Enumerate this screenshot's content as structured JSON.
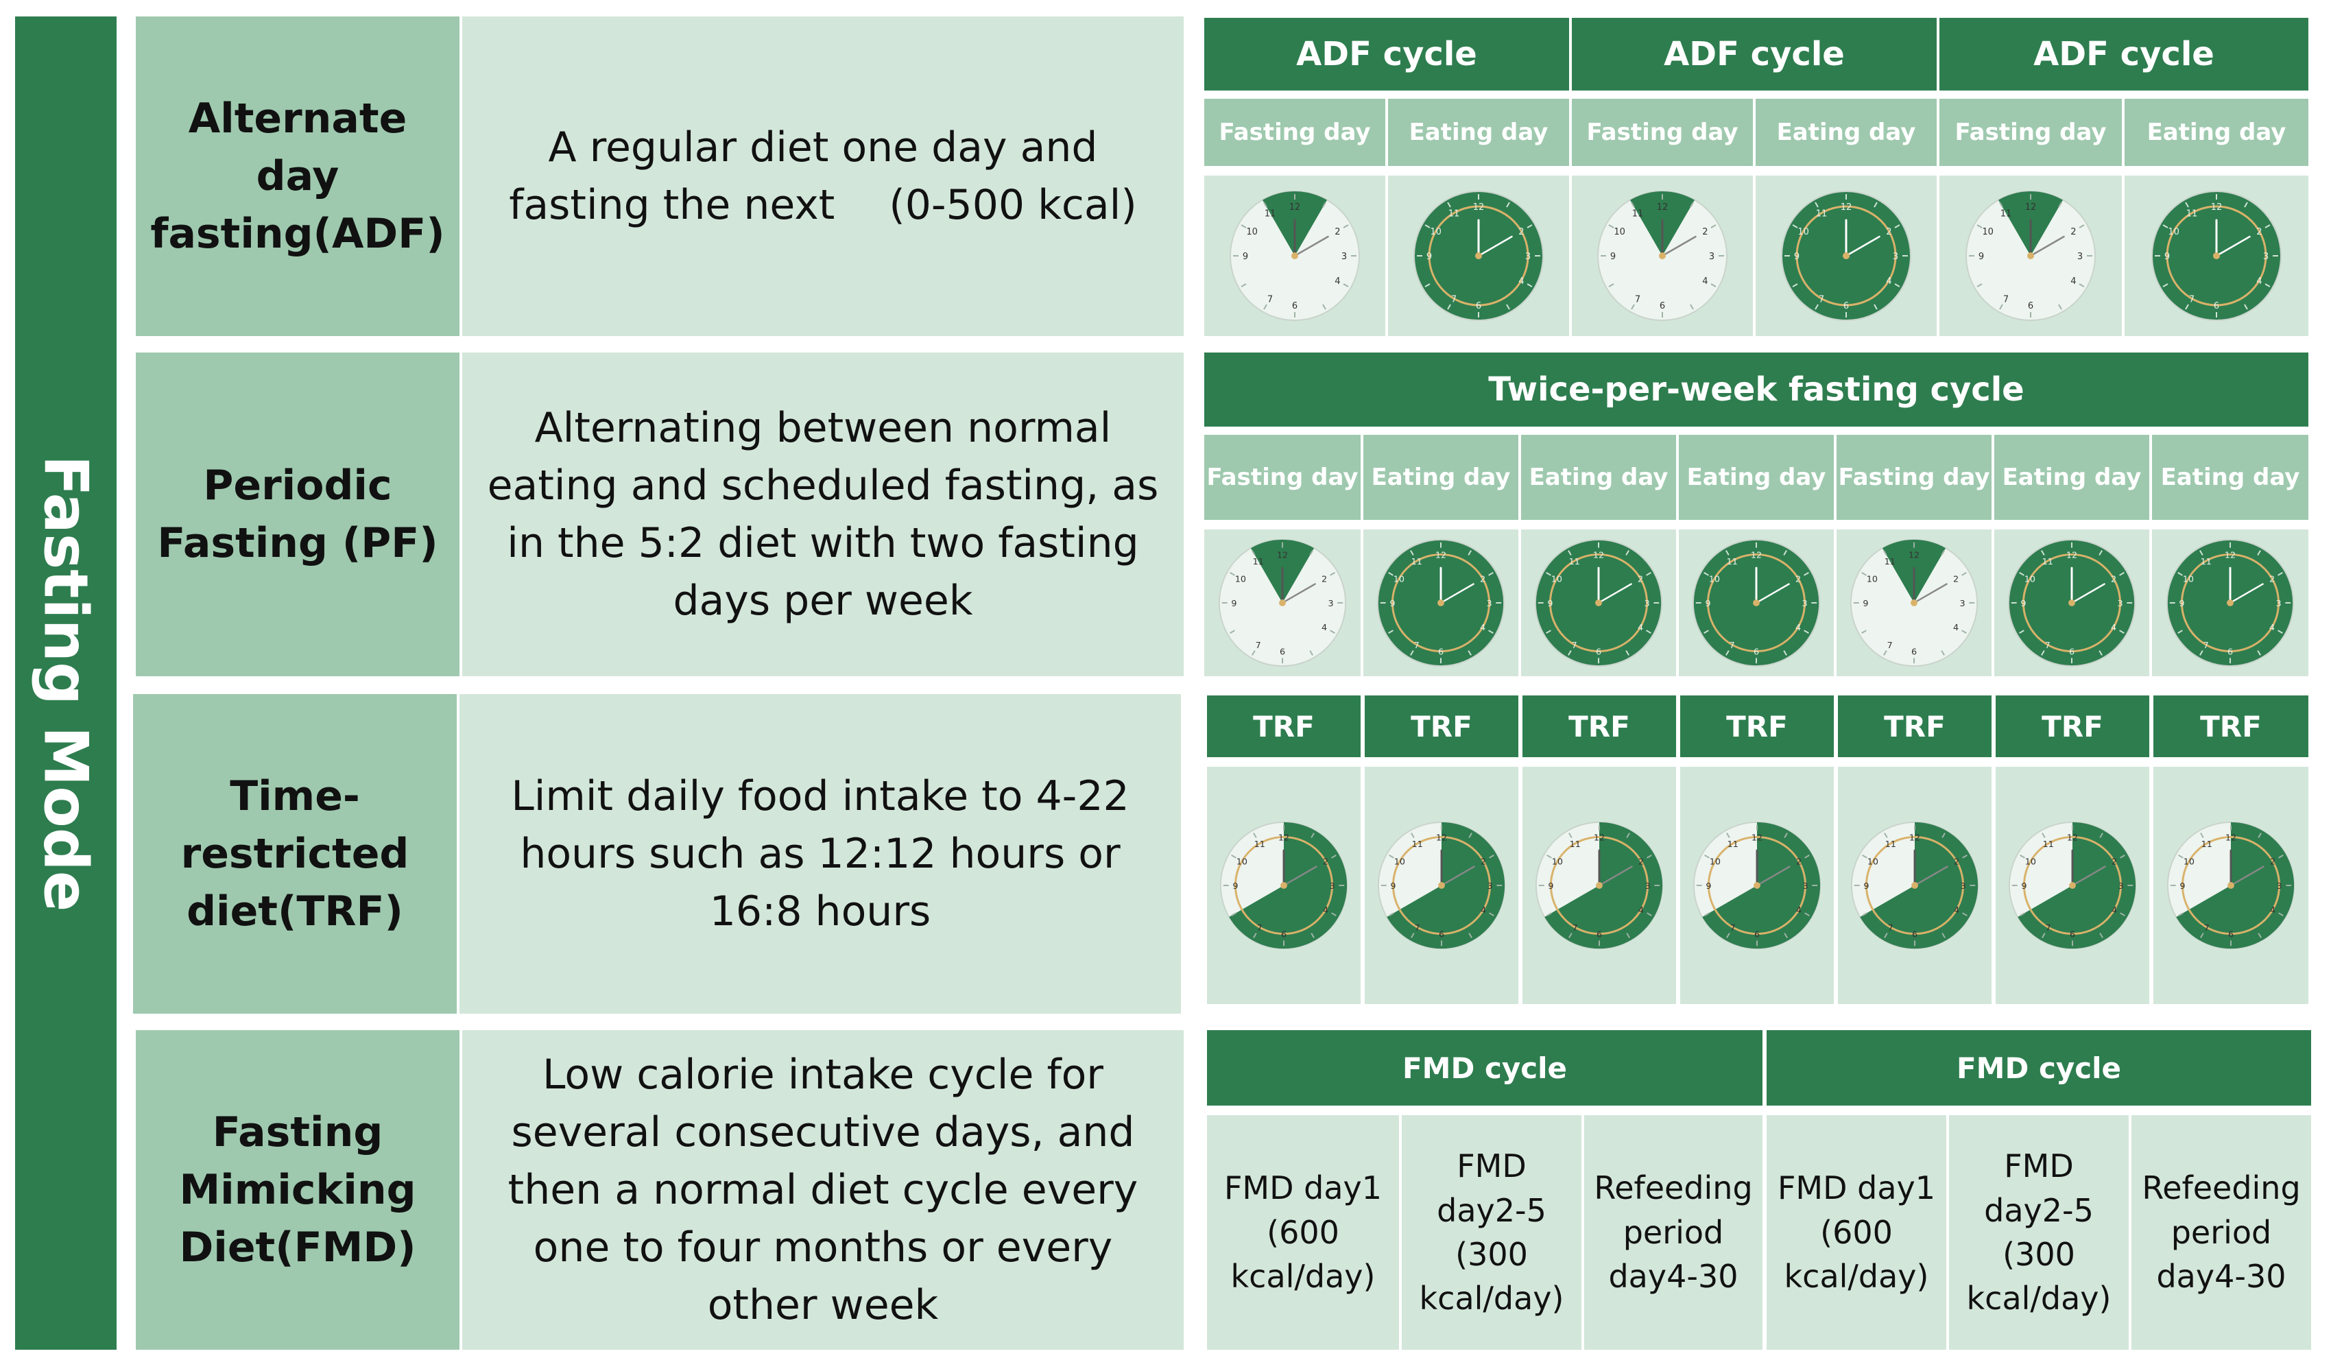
{
  "side_label": "Fasting Mode",
  "modes": [
    {
      "name": "Alternate day fasting(ADF)",
      "description": "A regular diet one day and fasting the next  (0-500 kcal)"
    },
    {
      "name": "Periodic Fasting (PF)",
      "description": "Alternating between normal eating and scheduled fasting, as in the 5:2 diet with two fasting days per week"
    },
    {
      "name": "Time-restricted diet(TRF)",
      "description": "Limit daily food intake to 4-22 hours such as 12:12 hours or 16:8 hours"
    },
    {
      "name": "Fasting Mimicking Diet(FMD)",
      "description": "Low calorie intake cycle for several consecutive days, and then a normal diet cycle every one to four months or every other week"
    }
  ],
  "adf": {
    "cycles": [
      "ADF cycle",
      "ADF cycle",
      "ADF cycle"
    ],
    "days": [
      "Fasting day",
      "Eating day",
      "Fasting day",
      "Eating day",
      "Fasting day",
      "Eating day"
    ]
  },
  "pf": {
    "header": "Twice-per-week fasting cycle",
    "days": [
      "Fasting day",
      "Eating day",
      "Eating day",
      "Eating day",
      "Fasting day",
      "Eating day",
      "Eating day"
    ]
  },
  "trf": {
    "headers": [
      "TRF",
      "TRF",
      "TRF",
      "TRF",
      "TRF",
      "TRF",
      "TRF"
    ]
  },
  "fmd": {
    "cycles": [
      "FMD cycle",
      "FMD cycle"
    ],
    "cells": [
      "FMD day1 (600 kcal/day)",
      "FMD day2-5 (300 kcal/day)",
      "Refeeding period day4-30",
      "FMD day1 (600 kcal/day)",
      "FMD day2-5 (300 kcal/day)",
      "Refeeding period day4-30"
    ]
  },
  "clock_numbers": [
    "12",
    "2",
    "3",
    "4",
    "6",
    "7",
    "9",
    "10",
    "11"
  ],
  "colors": {
    "dark_green": "#2e7d4f",
    "mid_green": "#9ec9ae",
    "light_green": "#d3e6da",
    "clock_face": "#eef4ef",
    "gold": "#d9b26a"
  }
}
